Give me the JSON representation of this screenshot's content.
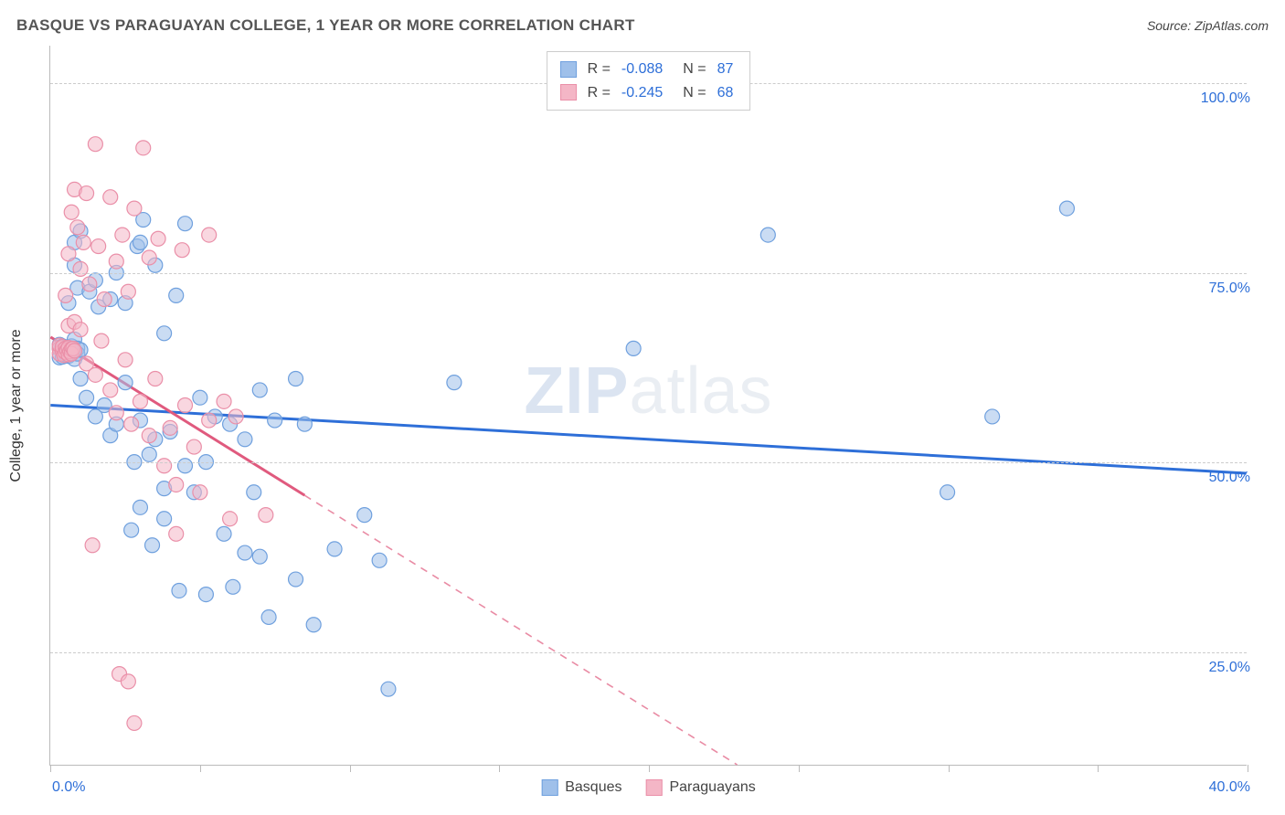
{
  "title": "BASQUE VS PARAGUAYAN COLLEGE, 1 YEAR OR MORE CORRELATION CHART",
  "source_label": "Source: ZipAtlas.com",
  "y_axis_label": "College, 1 year or more",
  "watermark": "ZIPatlas",
  "chart": {
    "type": "scatter",
    "background_color": "#ffffff",
    "grid_color": "#cccccc",
    "axis_color": "#bbbbbb",
    "tick_label_color": "#2e6fd8",
    "xlim": [
      0,
      40
    ],
    "ylim": [
      10,
      105
    ],
    "x_tick_positions": [
      0,
      5,
      10,
      15,
      20,
      25,
      30,
      35,
      40
    ],
    "x_tick_labels_shown": {
      "0": "0.0%",
      "40": "40.0%"
    },
    "y_gridlines": [
      25,
      50,
      75,
      100
    ],
    "y_tick_labels": {
      "25": "25.0%",
      "50": "50.0%",
      "75": "75.0%",
      "100": "100.0%"
    },
    "marker_radius": 8,
    "marker_opacity": 0.55,
    "trend_line_width": 3,
    "series": [
      {
        "name": "Basques",
        "color_fill": "#9fc0ea",
        "color_stroke": "#6fa0de",
        "trend_color": "#2e6fd8",
        "trend_dashed_after_x": 40,
        "r_value": "-0.088",
        "n_value": "87",
        "trend": {
          "x0": 0,
          "y0": 57.5,
          "x1": 40,
          "y1": 48.5
        },
        "points": [
          [
            0.3,
            65
          ],
          [
            0.3,
            63.8
          ],
          [
            0.3,
            65.5
          ],
          [
            0.4,
            64.6
          ],
          [
            0.4,
            65.3
          ],
          [
            0.4,
            63.9
          ],
          [
            0.4,
            64.8
          ],
          [
            0.5,
            64.5
          ],
          [
            0.5,
            64.2
          ],
          [
            0.5,
            65.1
          ],
          [
            0.6,
            65
          ],
          [
            0.6,
            64.7
          ],
          [
            0.6,
            64
          ],
          [
            0.7,
            65.3
          ],
          [
            0.7,
            64.4
          ],
          [
            0.8,
            66.2
          ],
          [
            0.8,
            63.6
          ],
          [
            0.9,
            65
          ],
          [
            0.9,
            64.3
          ],
          [
            1,
            64.8
          ],
          [
            0.6,
            71
          ],
          [
            0.8,
            79
          ],
          [
            0.8,
            76
          ],
          [
            0.9,
            73
          ],
          [
            1,
            80.5
          ],
          [
            1.3,
            72.5
          ],
          [
            1.5,
            74
          ],
          [
            1.6,
            70.5
          ],
          [
            2,
            71.5
          ],
          [
            2.2,
            75
          ],
          [
            2.5,
            71
          ],
          [
            2.9,
            78.5
          ],
          [
            3,
            79
          ],
          [
            3.1,
            82
          ],
          [
            3.5,
            76
          ],
          [
            3.8,
            67
          ],
          [
            4.2,
            72
          ],
          [
            4.5,
            81.5
          ],
          [
            1,
            61
          ],
          [
            1.2,
            58.5
          ],
          [
            1.5,
            56
          ],
          [
            1.8,
            57.5
          ],
          [
            2,
            53.5
          ],
          [
            2.2,
            55
          ],
          [
            2.5,
            60.5
          ],
          [
            2.8,
            50
          ],
          [
            3,
            55.5
          ],
          [
            3.3,
            51
          ],
          [
            3.5,
            53
          ],
          [
            3.8,
            46.5
          ],
          [
            4,
            54
          ],
          [
            4.5,
            49.5
          ],
          [
            4.8,
            46
          ],
          [
            5,
            58.5
          ],
          [
            5.2,
            50
          ],
          [
            5.5,
            56
          ],
          [
            6,
            55
          ],
          [
            6.5,
            53
          ],
          [
            6.8,
            46
          ],
          [
            7,
            59.5
          ],
          [
            7.5,
            55.5
          ],
          [
            8.2,
            61
          ],
          [
            8.5,
            55
          ],
          [
            2.7,
            41
          ],
          [
            3,
            44
          ],
          [
            3.4,
            39
          ],
          [
            3.8,
            42.5
          ],
          [
            4.3,
            33
          ],
          [
            5.2,
            32.5
          ],
          [
            5.8,
            40.5
          ],
          [
            6.1,
            33.5
          ],
          [
            6.5,
            38
          ],
          [
            7,
            37.5
          ],
          [
            7.3,
            29.5
          ],
          [
            8.2,
            34.5
          ],
          [
            8.8,
            28.5
          ],
          [
            9.5,
            38.5
          ],
          [
            10.5,
            43
          ],
          [
            11,
            37
          ],
          [
            11.3,
            20
          ],
          [
            13.5,
            60.5
          ],
          [
            19.5,
            65
          ],
          [
            24,
            80
          ],
          [
            30,
            46
          ],
          [
            31.5,
            56
          ],
          [
            34,
            83.5
          ]
        ]
      },
      {
        "name": "Paraguayans",
        "color_fill": "#f4b6c6",
        "color_stroke": "#ea8fa8",
        "trend_color": "#e05a7e",
        "trend_dashed_after_x": 8.5,
        "r_value": "-0.245",
        "n_value": "68",
        "trend": {
          "x0": 0,
          "y0": 66.5,
          "x1": 25,
          "y1": 5
        },
        "points": [
          [
            0.3,
            65
          ],
          [
            0.3,
            64.3
          ],
          [
            0.3,
            65.4
          ],
          [
            0.4,
            64.7
          ],
          [
            0.4,
            65.2
          ],
          [
            0.45,
            64.1
          ],
          [
            0.5,
            65
          ],
          [
            0.5,
            64.5
          ],
          [
            0.55,
            64.8
          ],
          [
            0.6,
            64.2
          ],
          [
            0.6,
            65.1
          ],
          [
            0.65,
            64.6
          ],
          [
            0.7,
            64.9
          ],
          [
            0.7,
            64.3
          ],
          [
            0.75,
            65
          ],
          [
            0.8,
            64.7
          ],
          [
            0.5,
            72
          ],
          [
            0.6,
            77.5
          ],
          [
            0.7,
            83
          ],
          [
            0.8,
            86
          ],
          [
            0.9,
            81
          ],
          [
            1,
            75.5
          ],
          [
            1.1,
            79
          ],
          [
            1.2,
            85.5
          ],
          [
            1.3,
            73.5
          ],
          [
            1.5,
            92
          ],
          [
            1.6,
            78.5
          ],
          [
            1.8,
            71.5
          ],
          [
            2,
            85
          ],
          [
            2.2,
            76.5
          ],
          [
            2.4,
            80
          ],
          [
            2.6,
            72.5
          ],
          [
            2.8,
            83.5
          ],
          [
            3.1,
            91.5
          ],
          [
            3.3,
            77
          ],
          [
            3.6,
            79.5
          ],
          [
            4.4,
            78
          ],
          [
            5.3,
            80
          ],
          [
            0.6,
            68
          ],
          [
            0.8,
            68.5
          ],
          [
            1,
            67.5
          ],
          [
            1.2,
            63
          ],
          [
            1.5,
            61.5
          ],
          [
            1.7,
            66
          ],
          [
            2,
            59.5
          ],
          [
            2.2,
            56.5
          ],
          [
            2.5,
            63.5
          ],
          [
            2.7,
            55
          ],
          [
            3,
            58
          ],
          [
            3.3,
            53.5
          ],
          [
            3.5,
            61
          ],
          [
            3.8,
            49.5
          ],
          [
            4,
            54.5
          ],
          [
            4.2,
            47
          ],
          [
            4.5,
            57.5
          ],
          [
            4.8,
            52
          ],
          [
            5,
            46
          ],
          [
            5.3,
            55.5
          ],
          [
            5.8,
            58
          ],
          [
            6,
            42.5
          ],
          [
            6.2,
            56
          ],
          [
            7.2,
            43
          ],
          [
            1.4,
            39
          ],
          [
            2.3,
            22
          ],
          [
            2.6,
            21
          ],
          [
            2.8,
            15.5
          ],
          [
            4.2,
            40.5
          ]
        ]
      }
    ]
  },
  "legend_bottom": [
    "Basques",
    "Paraguayans"
  ]
}
